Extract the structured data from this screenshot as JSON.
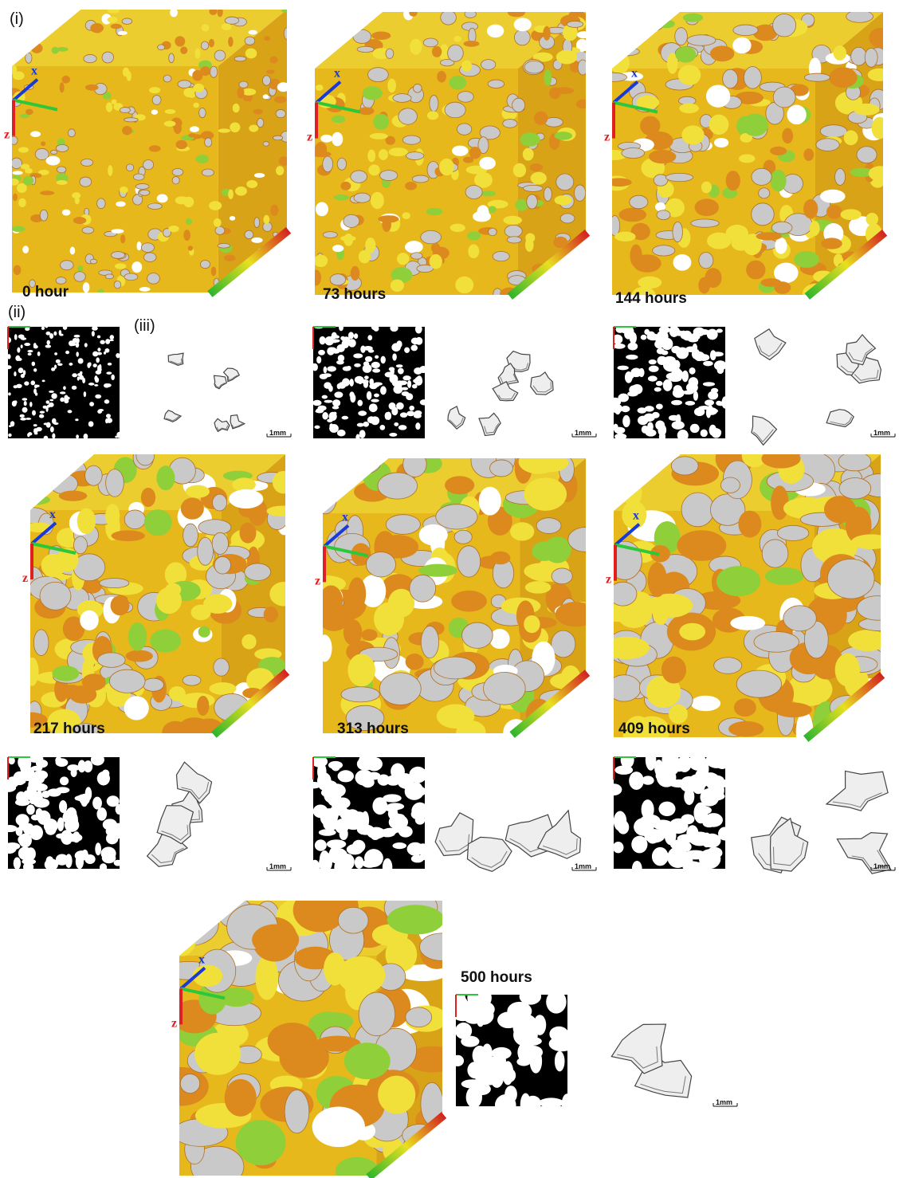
{
  "figure": {
    "labels": {
      "i": "(i)",
      "ii": "(ii)",
      "iii": "(iii)"
    },
    "panels": [
      {
        "time": "0 hour",
        "axis_x": "x",
        "axis_z": "z",
        "scale": "1mm"
      },
      {
        "time": "73 hours",
        "axis_x": "x",
        "axis_z": "z",
        "scale": "1mm"
      },
      {
        "time": "144 hours",
        "axis_x": "x",
        "axis_z": "z",
        "scale": "1mm"
      },
      {
        "time": "217 hours",
        "axis_x": "x",
        "axis_z": "z",
        "scale": "1mm"
      },
      {
        "time": "313 hours",
        "axis_x": "x",
        "axis_z": "z",
        "scale": "1mm"
      },
      {
        "time": "409 hours",
        "axis_x": "x",
        "axis_z": "z",
        "scale": "1mm"
      },
      {
        "time": "500 hours",
        "axis_x": "x",
        "axis_z": "z",
        "scale": "1mm"
      }
    ]
  }
}
